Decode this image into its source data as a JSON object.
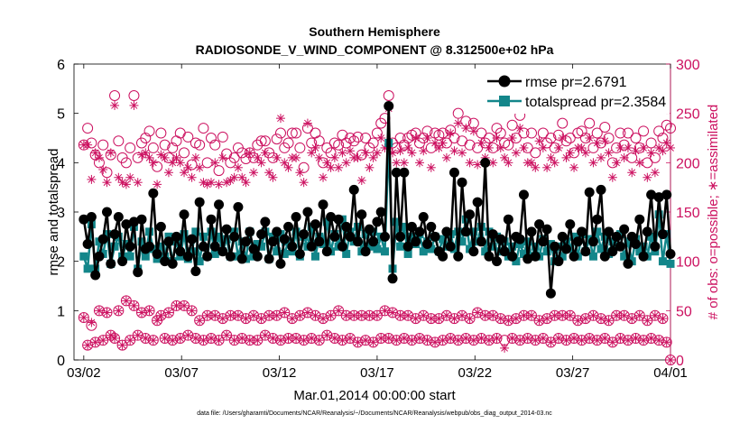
{
  "chart_data": {
    "type": "line",
    "title_line1": "Southern Hemisphere",
    "title_line2": "RADIOSONDE_V_WIND_COMPONENT @ 8.312500e+02 hPa",
    "ylabel_left": "rmse and totalspread",
    "ylabel_right": "# of obs: o=possible; ∗=assimilated",
    "xlabel": "Mar.01,2014 00:00:00 start",
    "footer": "data file: /Users/gharamti/Documents/NCAR/Reanalysis/~/Documents/NCAR/Reanalysis/webpub/obs_diag_output_2014-03.nc",
    "x_ticks": [
      "03/02",
      "03/07",
      "03/12",
      "03/17",
      "03/22",
      "03/27",
      "04/01"
    ],
    "x_tick_days": [
      1,
      6,
      11,
      16,
      21,
      26,
      31
    ],
    "xlim_days": [
      0.5,
      31
    ],
    "ylim_left": [
      0,
      6
    ],
    "y_ticks_left": [
      "0",
      "1",
      "2",
      "3",
      "4",
      "5",
      "6"
    ],
    "ylim_right": [
      0,
      300
    ],
    "y_ticks_right": [
      "0",
      "50",
      "100",
      "150",
      "200",
      "250",
      "300"
    ],
    "colors": {
      "rmse": "#000000",
      "totalspread": "#13868a",
      "obs": "#cc1160"
    },
    "legend": [
      {
        "name": "rmse pr=2.6791",
        "color": "#000000",
        "marker": "circle"
      },
      {
        "name": "totalspread pr=2.3584",
        "color": "#13868a",
        "marker": "square"
      }
    ],
    "series": [
      {
        "name": "rmse",
        "values": [
          2.85,
          2.35,
          2.9,
          1.72,
          2.1,
          2.45,
          3.0,
          1.95,
          2.55,
          2.9,
          2.0,
          2.75,
          2.3,
          2.8,
          1.78,
          2.85,
          2.25,
          2.3,
          3.38,
          2.15,
          2.7,
          2.0,
          2.4,
          1.95,
          2.5,
          2.2,
          2.95,
          2.1,
          2.45,
          1.8,
          3.2,
          2.3,
          2.1,
          2.85,
          2.3,
          3.15,
          2.2,
          2.65,
          2.1,
          2.5,
          3.1,
          2.05,
          2.4,
          2.6,
          2.25,
          2.1,
          2.55,
          2.8,
          2.05,
          2.4,
          2.6,
          1.95,
          2.45,
          2.7,
          2.3,
          2.9,
          2.15,
          2.55,
          3.0,
          2.3,
          2.75,
          2.4,
          3.15,
          2.2,
          2.9,
          2.5,
          2.85,
          2.3,
          2.7,
          2.5,
          3.45,
          2.4,
          2.95,
          2.2,
          2.65,
          2.4,
          2.8,
          3.0,
          2.5,
          5.15,
          1.65,
          3.8,
          2.5,
          3.8,
          2.3,
          2.7,
          2.4,
          2.6,
          2.9,
          2.35,
          2.7,
          2.5,
          2.2,
          2.1,
          2.6,
          2.3,
          3.8,
          2.1,
          3.6,
          2.6,
          2.95,
          2.2,
          3.2,
          2.4,
          4.0,
          2.1,
          2.55,
          2.0,
          2.45,
          2.2,
          2.85,
          2.1,
          2.5,
          2.45,
          3.35,
          2.05,
          2.6,
          2.1,
          2.75,
          2.4,
          2.65,
          1.35,
          2.3,
          2.0,
          2.5,
          2.25,
          2.75,
          2.1,
          2.4,
          2.6,
          2.2,
          3.4,
          2.4,
          2.85,
          3.45,
          2.1,
          2.6,
          2.2,
          2.5,
          2.3,
          2.65,
          1.95,
          2.5,
          2.35,
          2.85,
          2.1,
          2.6,
          3.35,
          2.3,
          3.3,
          2.55,
          3.35,
          2.15
        ]
      },
      {
        "name": "totalspread",
        "values": [
          2.1,
          1.85,
          2.75,
          1.85,
          2.4,
          2.15,
          2.55,
          1.95,
          2.3,
          2.5,
          2.1,
          2.35,
          2.1,
          2.7,
          1.85,
          2.4,
          2.1,
          2.6,
          2.25,
          2.05,
          2.3,
          2.1,
          2.5,
          2.0,
          2.4,
          2.1,
          2.55,
          2.05,
          2.2,
          2.6,
          2.0,
          2.5,
          2.1,
          2.6,
          2.15,
          2.5,
          2.2,
          2.45,
          2.1,
          2.6,
          2.1,
          2.4,
          2.05,
          2.6,
          2.1,
          2.35,
          2.3,
          2.6,
          2.05,
          2.5,
          2.2,
          2.55,
          2.15,
          2.4,
          2.2,
          2.6,
          2.1,
          2.5,
          2.3,
          2.7,
          2.1,
          2.5,
          2.35,
          2.8,
          2.2,
          2.55,
          2.3,
          2.85,
          2.15,
          2.6,
          2.4,
          2.7,
          2.2,
          2.55,
          2.3,
          2.6,
          2.25,
          2.5,
          2.2,
          4.4,
          1.85,
          2.8,
          2.3,
          2.7,
          2.15,
          2.5,
          2.35,
          2.55,
          2.2,
          2.4,
          2.25,
          2.5,
          2.2,
          2.45,
          2.3,
          2.55,
          2.25,
          2.6,
          2.4,
          2.85,
          2.25,
          2.6,
          2.4,
          2.7,
          2.2,
          2.6,
          2.3,
          2.5,
          2.2,
          2.4,
          2.1,
          2.3,
          2.0,
          2.35,
          2.15,
          2.4,
          2.1,
          2.3,
          2.1,
          2.45,
          2.2,
          2.35,
          2.0,
          2.3,
          2.1,
          2.4,
          2.25,
          2.5,
          2.1,
          2.55,
          2.2,
          2.45,
          2.1,
          2.6,
          2.25,
          2.5,
          2.15,
          2.4,
          2.3,
          2.55,
          2.1,
          2.4,
          2.0,
          2.45,
          2.2,
          2.3,
          2.1,
          2.5,
          2.2,
          2.95,
          2.0,
          2.55,
          1.95
        ]
      },
      {
        "name": "possible",
        "values": [
          218,
          235,
          220,
          208,
          200,
          218,
          190,
          208,
          268,
          222,
          205,
          200,
          215,
          268,
          205,
          220,
          225,
          232,
          215,
          196,
          230,
          218,
          205,
          215,
          222,
          230,
          210,
          226,
          198,
          220,
          218,
          235,
          200,
          225,
          218,
          192,
          226,
          209,
          200,
          205,
          215,
          210,
          204,
          210,
          205,
          218,
          222,
          222,
          210,
          205,
          224,
          230,
          215,
          220,
          230,
          230,
          215,
          195,
          235,
          220,
          230,
          222,
          200,
          215,
          210,
          220,
          218,
          228,
          220,
          225,
          222,
          226,
          208,
          225,
          215,
          220,
          230,
          240,
          245,
          268,
          220,
          215,
          225,
          218,
          225,
          228,
          230,
          220,
          225,
          232,
          215,
          230,
          228,
          230,
          220,
          233,
          225,
          250,
          222,
          242,
          218,
          240,
          215,
          230,
          220,
          225,
          215,
          235,
          230,
          220,
          218,
          238,
          225,
          248,
          230,
          215,
          230,
          210,
          285,
          230,
          220,
          225,
          215,
          228,
          240,
          222,
          225,
          210,
          230,
          232,
          225,
          240,
          215,
          230,
          220,
          236,
          225,
          200,
          215,
          230,
          218,
          230,
          205,
          225,
          215,
          232,
          200,
          220,
          205,
          232,
          225,
          238,
          235
        ]
      },
      {
        "name": "assimilated",
        "values": [
          218,
          218,
          183,
          210,
          205,
          193,
          180,
          210,
          258,
          185,
          180,
          178,
          185,
          258,
          180,
          208,
          210,
          205,
          200,
          178,
          208,
          205,
          190,
          200,
          205,
          200,
          190,
          195,
          185,
          205,
          195,
          180,
          178,
          180,
          200,
          178,
          205,
          180,
          182,
          185,
          195,
          185,
          180,
          210,
          190,
          205,
          200,
          210,
          190,
          185,
          205,
          245,
          200,
          195,
          205,
          205,
          190,
          180,
          240,
          210,
          215,
          205,
          185,
          200,
          195,
          205,
          195,
          210,
          200,
          212,
          205,
          205,
          182,
          210,
          195,
          205,
          210,
          225,
          215,
          255,
          210,
          200,
          212,
          200,
          215,
          210,
          225,
          200,
          212,
          225,
          195,
          220,
          215,
          220,
          205,
          230,
          212,
          240,
          210,
          235,
          200,
          232,
          198,
          220,
          205,
          215,
          200,
          225,
          215,
          205,
          200,
          225,
          210,
          235,
          215,
          200,
          200,
          195,
          222,
          215,
          195,
          205,
          200,
          215,
          225,
          205,
          210,
          195,
          215,
          215,
          210,
          225,
          200,
          220,
          205,
          222,
          210,
          185,
          200,
          215,
          205,
          215,
          190,
          212,
          200,
          215,
          185,
          210,
          190,
          215,
          212,
          220,
          215
        ]
      },
      {
        "name": "possible_low",
        "values": [
          43,
          15,
          35,
          18,
          50,
          20,
          48,
          25,
          22,
          50,
          15,
          60,
          20,
          55,
          25,
          48,
          22,
          50,
          20,
          40,
          45,
          22,
          48,
          20,
          55,
          22,
          55,
          25,
          50,
          22,
          40,
          20,
          45,
          22,
          45,
          20,
          42,
          25,
          45,
          20,
          45,
          22,
          42,
          20,
          45,
          20,
          42,
          25,
          45,
          22,
          45,
          20,
          48,
          22,
          42,
          22,
          45,
          20,
          48,
          22,
          45,
          20,
          42,
          25,
          45,
          22,
          50,
          20,
          45,
          22,
          45,
          18,
          45,
          20,
          45,
          18,
          45,
          22,
          50,
          22,
          48,
          20,
          45,
          22,
          45,
          20,
          42,
          22,
          45,
          20,
          42,
          18,
          42,
          20,
          45,
          22,
          42,
          20,
          45,
          22,
          42,
          20,
          48,
          22,
          45,
          20,
          45,
          22,
          42,
          20,
          40,
          22,
          42,
          20,
          45,
          22,
          45,
          20,
          40,
          22,
          42,
          18,
          45,
          22,
          45,
          20,
          45,
          22,
          40,
          20,
          42,
          22,
          45,
          20,
          42,
          22,
          40,
          18,
          45,
          22,
          45,
          20,
          42,
          22,
          45,
          20,
          40,
          22,
          45,
          20,
          42,
          18,
          0
        ]
      },
      {
        "name": "assimilated_low",
        "values": [
          43,
          15,
          38,
          18,
          50,
          20,
          48,
          25,
          22,
          50,
          15,
          60,
          20,
          55,
          25,
          48,
          22,
          50,
          20,
          40,
          45,
          22,
          48,
          20,
          55,
          22,
          55,
          25,
          50,
          22,
          40,
          20,
          45,
          22,
          45,
          20,
          42,
          25,
          45,
          20,
          45,
          22,
          42,
          20,
          45,
          20,
          42,
          25,
          45,
          22,
          45,
          20,
          48,
          22,
          42,
          22,
          45,
          20,
          48,
          22,
          45,
          20,
          42,
          25,
          45,
          22,
          50,
          20,
          45,
          22,
          45,
          18,
          45,
          20,
          45,
          18,
          45,
          22,
          50,
          22,
          48,
          20,
          45,
          22,
          45,
          20,
          42,
          22,
          45,
          20,
          42,
          18,
          42,
          20,
          45,
          22,
          42,
          20,
          45,
          22,
          42,
          20,
          48,
          22,
          45,
          20,
          45,
          22,
          42,
          12,
          40,
          22,
          42,
          20,
          45,
          22,
          45,
          20,
          40,
          22,
          42,
          18,
          45,
          22,
          45,
          20,
          45,
          22,
          40,
          20,
          42,
          22,
          45,
          20,
          42,
          22,
          40,
          18,
          45,
          22,
          45,
          20,
          42,
          22,
          45,
          20,
          40,
          22,
          45,
          20,
          42,
          18,
          0
        ]
      }
    ]
  }
}
